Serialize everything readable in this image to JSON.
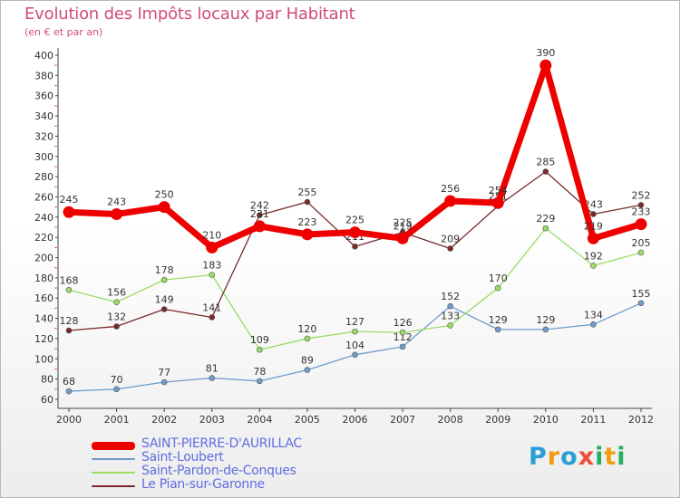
{
  "header": {
    "title": "Evolution des Impôts locaux par Habitant",
    "subtitle": "(en € et par an)"
  },
  "chart_data": {
    "type": "line",
    "title": "Evolution des Impôts locaux par Habitant",
    "subtitle": "(en € et par an)",
    "xlabel": "",
    "ylabel": "",
    "x": [
      2000,
      2001,
      2002,
      2003,
      2004,
      2005,
      2006,
      2007,
      2008,
      2009,
      2010,
      2011,
      2012
    ],
    "x_tick_labels": [
      "2000",
      "2001",
      "2002",
      "2003",
      "2004",
      "2005",
      "2006",
      "2007",
      "2008",
      "2009",
      "2010",
      "2011",
      "2012"
    ],
    "y_ticks": [
      60,
      80,
      100,
      120,
      140,
      160,
      180,
      200,
      220,
      240,
      260,
      280,
      300,
      320,
      340,
      360,
      380,
      400
    ],
    "ylim": [
      60,
      400
    ],
    "grid": false,
    "legend_position": "bottom-left",
    "series": [
      {
        "name": "SAINT-PIERRE-D'AURILLAC",
        "color": "#ee0000",
        "values": [
          245,
          243,
          250,
          210,
          231,
          223,
          225,
          219,
          256,
          254,
          390,
          219,
          233
        ]
      },
      {
        "name": "Saint-Loubert",
        "color": "#6f9ccc",
        "values": [
          68,
          70,
          77,
          81,
          78,
          89,
          104,
          112,
          152,
          129,
          129,
          134,
          155
        ]
      },
      {
        "name": "Saint-Pardon-de-Conques",
        "color": "#99dd66",
        "values": [
          168,
          156,
          178,
          183,
          109,
          120,
          127,
          126,
          133,
          170,
          229,
          192,
          205
        ]
      },
      {
        "name": "Le Pian-sur-Garonne",
        "color": "#7a2a2a",
        "values": [
          128,
          132,
          149,
          141,
          242,
          255,
          211,
          225,
          209,
          251,
          285,
          243,
          252
        ]
      }
    ]
  },
  "logo": {
    "letters": [
      "P",
      "r",
      "o",
      "x",
      "i",
      "t",
      "i"
    ],
    "colors": [
      "#2a9fd6",
      "#f39c12",
      "#2a9fd6",
      "#ea4f3b",
      "#27ae60",
      "#f39c12",
      "#27ae60"
    ]
  }
}
